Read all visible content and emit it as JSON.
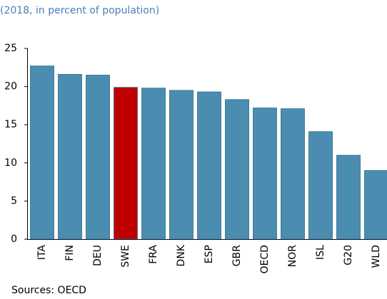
{
  "chart_data": {
    "type": "bar",
    "subtitle": "(2018, in percent of population)",
    "source": "Sources: OECD",
    "categories": [
      "ITA",
      "FIN",
      "DEU",
      "SWE",
      "FRA",
      "DNK",
      "ESP",
      "GBR",
      "OECD",
      "NOR",
      "ISL",
      "G20",
      "WLD"
    ],
    "values": [
      22.7,
      21.6,
      21.5,
      19.9,
      19.8,
      19.5,
      19.3,
      18.3,
      17.2,
      17.1,
      14.1,
      11.0,
      9.0
    ],
    "colors": [
      "#4a8db0",
      "#4a8db0",
      "#4a8db0",
      "#c00000",
      "#4a8db0",
      "#4a8db0",
      "#4a8db0",
      "#4a8db0",
      "#4a8db0",
      "#4a8db0",
      "#4a8db0",
      "#4a8db0",
      "#4a8db0"
    ],
    "ylim": [
      0,
      25
    ],
    "yticks": [
      0,
      5,
      10,
      15,
      20,
      25
    ],
    "grid": false
  }
}
